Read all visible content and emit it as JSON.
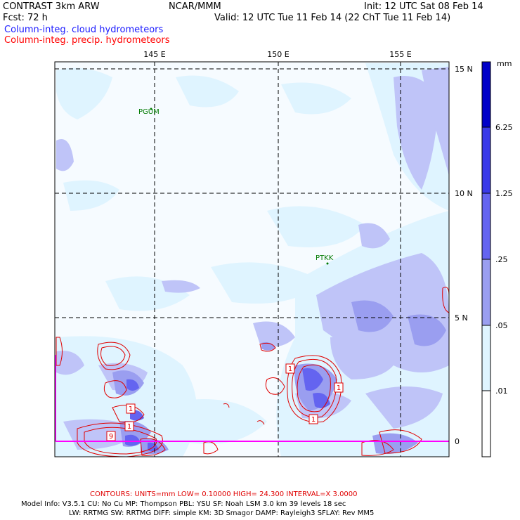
{
  "header": {
    "product": "CONTRAST  3km ARW",
    "org": "NCAR/MMM",
    "init": "Init: 12 UTC Sat 08 Feb 14",
    "fcst": "Fcst:    72 h",
    "valid": "Valid: 12 UTC Tue 11 Feb 14 (22 ChT Tue 11 Feb 14)",
    "field_cloud": "Column-integ. cloud hydrometeors",
    "field_precip": "Column-integ. precip. hydrometeors"
  },
  "colors": {
    "cloud_title": "#1a1aff",
    "precip_title": "#ff0000",
    "contour": "#e00000",
    "station": "#007a00",
    "boundary": "#ff00ff",
    "fill_01": "#dff4ff",
    "fill_05": "#bfc4f8",
    "fill_25": "#9a9ef0",
    "fill_125": "#6464f0",
    "fill_625": "#3a3ae8",
    "fill_max": "#0000c8"
  },
  "map": {
    "lon_labels": [
      "145 E",
      "150 E",
      "155 E"
    ],
    "lat_labels": [
      "15 N",
      "10 N",
      "5 N",
      "0"
    ],
    "stations": [
      "PGUM",
      "PTKK"
    ],
    "contour_labels": [
      "1",
      "1",
      "1",
      "1",
      "1",
      "9"
    ]
  },
  "colorbar": {
    "unit": "mm",
    "labels": [
      "6.25",
      "1.25",
      ".25",
      ".05",
      ".01"
    ]
  },
  "footer": {
    "contours": "CONTOURS:  UNITS=mm  LOW= 0.10000      HIGH=  24.300      INTERVAL=X  3.0000",
    "model_line1": "Model Info: V3.5.1     CU: No Cu      MP: Thompson     PBL: YSU        SF: Noah LSM      3.0 km   39 levels    18 sec",
    "model_line2": "LW: RRTMG     SW: RRTMG   DIFF: simple KM: 3D Smagor DAMP: Rayleigh3   SFLAY: Rev MM5"
  }
}
